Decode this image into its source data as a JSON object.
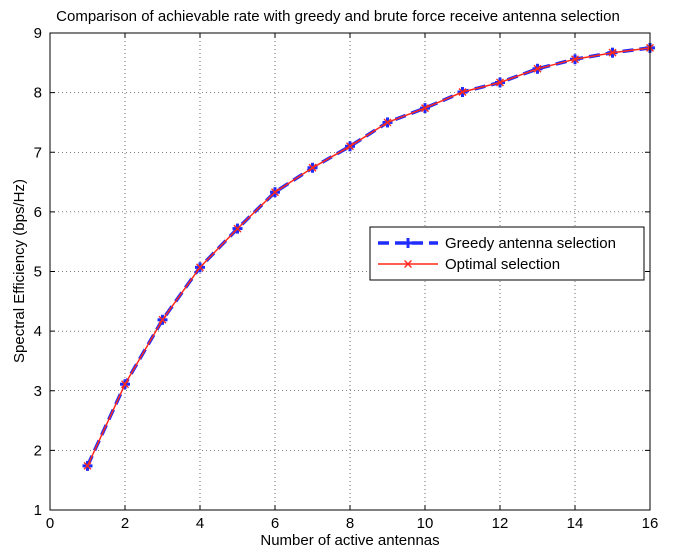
{
  "chart_data": {
    "type": "line",
    "title": "Comparison of achievable rate with greedy and brute force receive antenna selection",
    "xlabel": "Number of active antennas",
    "ylabel": "Spectral Efficiency (bps/Hz)",
    "xlim": [
      0,
      16
    ],
    "ylim": [
      1,
      9
    ],
    "xticks": [
      0,
      2,
      4,
      6,
      8,
      10,
      12,
      14,
      16
    ],
    "yticks": [
      1,
      2,
      3,
      4,
      5,
      6,
      7,
      8,
      9
    ],
    "grid": true,
    "legend_position": "center-right",
    "x": [
      1,
      2,
      3,
      4,
      5,
      6,
      7,
      8,
      9,
      10,
      11,
      12,
      13,
      14,
      15,
      16
    ],
    "series": [
      {
        "name": "Greedy antenna selection",
        "color": "#1f2bff",
        "marker": "plus",
        "line": "dashed",
        "values": [
          1.74,
          3.11,
          4.19,
          5.07,
          5.72,
          6.33,
          6.74,
          7.1,
          7.5,
          7.74,
          8.01,
          8.17,
          8.4,
          8.56,
          8.67,
          8.75
        ]
      },
      {
        "name": "Optimal selection",
        "color": "#ff2a1a",
        "marker": "x",
        "line": "solid",
        "values": [
          1.74,
          3.11,
          4.19,
          5.07,
          5.72,
          6.33,
          6.74,
          7.1,
          7.5,
          7.74,
          8.01,
          8.17,
          8.4,
          8.56,
          8.67,
          8.75
        ]
      }
    ]
  }
}
